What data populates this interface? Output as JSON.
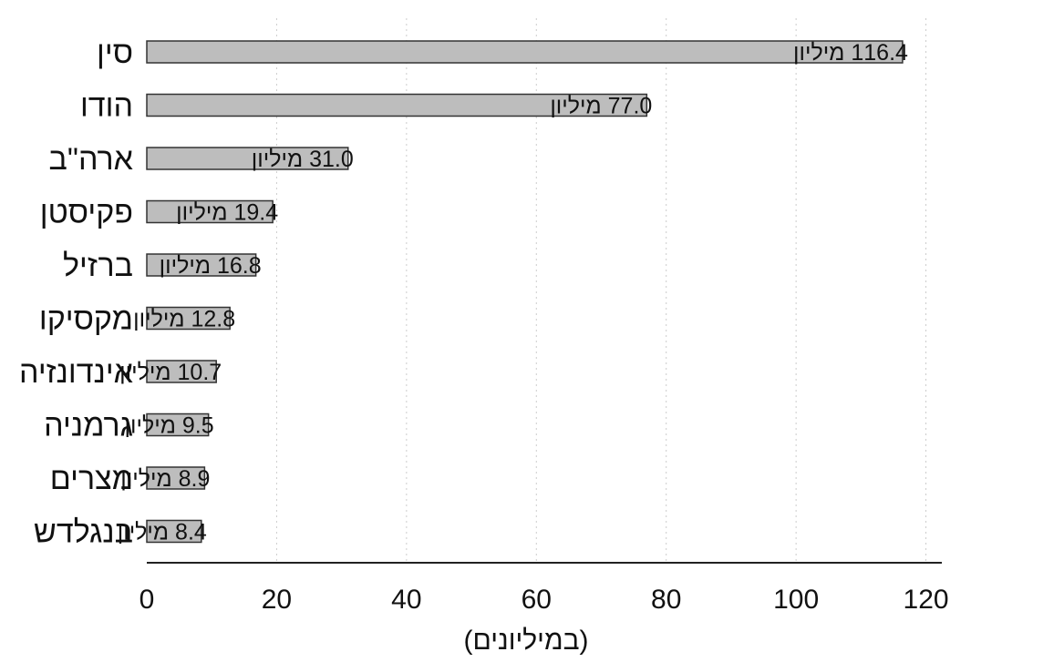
{
  "chart_data": {
    "type": "bar",
    "orientation": "horizontal",
    "categories": [
      "סין",
      "הודו",
      "ארה\"ב",
      "פקיסטן",
      "ברזיל",
      "מקסיקו",
      "אינדונזיה",
      "גרמניה",
      "מצרים",
      "בנגלדש"
    ],
    "values": [
      116.4,
      77.0,
      31.0,
      19.4,
      16.8,
      12.8,
      10.7,
      9.5,
      8.9,
      8.4
    ],
    "value_labels": [
      "116.4 מיליון",
      "77.0 מיליון",
      "31.0 מיליון",
      "19.4 מיליון",
      "16.8 מיליון",
      "12.8 מיליון",
      "10.7 מיליון",
      "9.5 מיליון",
      "8.9 מיליון",
      "8.4 מיליון"
    ],
    "xlabel": "(במיליונים)",
    "xlim": [
      0,
      120
    ],
    "xticks": [
      "0",
      "20",
      "40",
      "60",
      "80",
      "100",
      "120"
    ],
    "grid": "vertical dotted",
    "colors": {
      "bar_fill": "#bdbdbd",
      "bar_stroke": "#333333",
      "grid": "#cccccc",
      "axis": "#222222"
    }
  }
}
